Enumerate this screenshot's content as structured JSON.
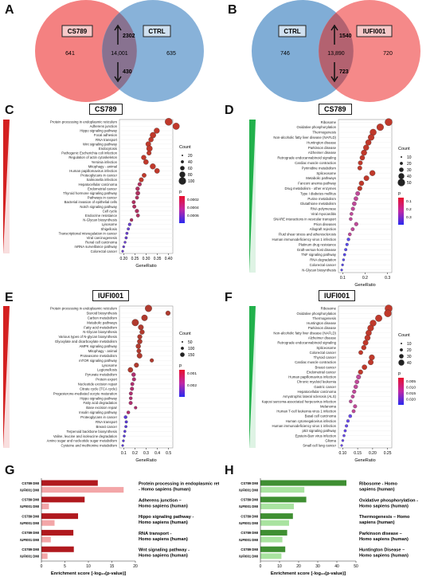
{
  "panels": {
    "A": {
      "letter": "A",
      "left_label": "CS789",
      "right_label": "CTRL",
      "left_only": "641",
      "overlap": "14,001",
      "right_only": "635",
      "up": "2302",
      "down": "430",
      "left_color": "#f26b6b",
      "right_color": "#6a9fcf"
    },
    "B": {
      "letter": "B",
      "left_label": "CTRL",
      "right_label": "IUFI001",
      "left_only": "746",
      "overlap": "13,890",
      "right_only": "720",
      "up": "1540",
      "down": "723",
      "left_color": "#6a9fcf",
      "right_color": "#f26b6b"
    },
    "C": {
      "letter": "C",
      "title": "CS789",
      "xlabel": "GeneRatio",
      "xticks": [
        "0.20",
        "0.25",
        "0.30",
        "0.35",
        "0.40"
      ],
      "terms": [
        "Protein processing in endoplasmic reticulum",
        "Adherens junction",
        "Hippo signaling pathway",
        "Focal adhesion",
        "RNA transport",
        "Wnt signaling pathway",
        "Endocytosis",
        "Pathogenic Escherichia coli infection",
        "Regulation of actin cytoskeleton",
        "Yersinia infection",
        "Mitophagy - animal",
        "Human papillomavirus infection",
        "Proteoglycans in cancer",
        "Salmonella infection",
        "Hepatocellular carcinoma",
        "Endometrial cancer",
        "Thyroid hormone signaling pathway",
        "Pathways in cancer",
        "Bacterial invasion of epithelial cells",
        "Notch signaling pathway",
        "Cell cycle",
        "Endocrine resistance",
        "N-Glycan biosynthesis",
        "Lysosome",
        "Shigellosis",
        "Transcriptional misregulation in cancer",
        "Viral carcinogenesis",
        "Renal cell carcinoma",
        "mRNA surveillance pathway",
        "Colorectal cancer"
      ],
      "size_legend": {
        "title": "Count",
        "values": [
          "20",
          "40",
          "60",
          "80",
          "100"
        ]
      },
      "color_legend": {
        "title": "p",
        "values": [
          "0.0002",
          "0.0004",
          "0.0006"
        ]
      }
    },
    "D": {
      "letter": "D",
      "title": "CS789",
      "xlabel": "GeneRatio",
      "xticks": [
        "0.1",
        "0.2",
        "0.3"
      ],
      "terms": [
        "Ribosome",
        "Oxidative phosphorylation",
        "Thermogenesis",
        "Non-alcoholic fatty liver disease (NAFLD)",
        "Huntington disease",
        "Parkinson disease",
        "Alzheimer disease",
        "Retrograde endocannabinoid signaling",
        "Cardiac muscle contraction",
        "Pyrimidine metabolism",
        "Spliceosome",
        "Metabolic pathways",
        "Fanconi anemia pathway",
        "Drug metabolism - other enzymes",
        "Type I diabetes mellitus",
        "Purine metabolism",
        "Glutathione metabolism",
        "RNA polymerase",
        "Viral myocarditis",
        "SNARE interactions in vesicular transport",
        "Prion diseases",
        "Allograft rejection",
        "Fluid shear stress and atherosclerosis",
        "Human immunodeficiency virus 1 infection",
        "Platinum drug resistance",
        "Graft-versus-host disease",
        "TNF signaling pathway",
        "RNA degradation",
        "Colorectal cancer",
        "N-Glycan biosynthesis"
      ],
      "size_legend": {
        "title": "Count",
        "values": [
          "10",
          "20",
          "30",
          "40",
          "50"
        ]
      },
      "color_legend": {
        "title": "p",
        "values": [
          "0.1",
          "0.2",
          "0.3"
        ]
      }
    },
    "E": {
      "letter": "E",
      "title": "IUFI001",
      "xlabel": "GeneRatio",
      "xticks": [
        "0.1",
        "0.2",
        "0.3",
        "0.4",
        "0.5"
      ],
      "terms": [
        "Protein processing in endoplasmic reticulum",
        "Steroid biosynthesis",
        "Carbon metabolism",
        "Metabolic pathways",
        "Fatty acid metabolism",
        "N-Glycan biosynthesis",
        "Various types of N-glycan biosynthesis",
        "Glyoxylate and dicarboxylate metabolism",
        "AMPK signaling pathway",
        "Mitophagy - animal",
        "Proteasome metabolism",
        "mTOR signaling pathway",
        "Lysosome",
        "Legionellosis",
        "Pyruvate metabolism",
        "Protein export",
        "Nucleotide excision repair",
        "Citrate cycle (TCA cycle)",
        "Progesterone-mediated oocyte maturation",
        "Hippo signaling pathway",
        "Fatty acid degradation",
        "Base excision repair",
        "Insulin signaling pathway",
        "Proteoglycans in cancer",
        "RNA transport",
        "Breast cancer",
        "Terpenoid backbone biosynthesis",
        "Valine, leucine and isoleucine degradation",
        "Amino sugar and nucleotide sugar metabolism",
        "Cysteine and methionine metabolism"
      ],
      "size_legend": {
        "title": "Count",
        "values": [
          "50",
          "100",
          "150"
        ]
      },
      "color_legend": {
        "title": "p",
        "values": [
          "0.001",
          "0.002"
        ]
      }
    },
    "F": {
      "letter": "F",
      "title": "IUFI001",
      "xlabel": "GeneRatio",
      "xticks": [
        "0.10",
        "0.15",
        "0.20",
        "0.25"
      ],
      "terms": [
        "Ribosome",
        "Oxidative phosphorylation",
        "Thermogenesis",
        "Huntington disease",
        "Parkinson disease",
        "Non-alcoholic fatty liver disease (NAFLD)",
        "Alzheimer disease",
        "Retrograde endocannabinoid signaling",
        "Spliceosome",
        "Colorectal cancer",
        "Thyroid cancer",
        "Cardiac muscle contraction",
        "Breast cancer",
        "Endometrial cancer",
        "Human papillomavirus infection",
        "Chronic myeloid leukemia",
        "Gastric cancer",
        "Hepatocellular carcinoma",
        "Amyotrophic lateral sclerosis (ALS)",
        "Kaposi sarcoma-associated herpesvirus infection",
        "Melanoma",
        "Human T-cell leukemia virus 1 infection",
        "Basal cell carcinoma",
        "Human cytomegalovirus infection",
        "Human immunodeficiency virus 1 infection",
        "p53 signaling pathway",
        "Epstein-Barr virus infection",
        "Glioma",
        "Small cell lung cancer"
      ],
      "size_legend": {
        "title": "Count",
        "values": [
          "10",
          "20",
          "30",
          "40"
        ]
      },
      "color_legend": {
        "title": "p",
        "values": [
          "0.005",
          "0.010",
          "0.015",
          "0.020"
        ]
      }
    },
    "G": {
      "letter": "G",
      "xlabel": "Enrichment score [-log₁₀(p-value)]",
      "xticks": [
        "0",
        "5",
        "10",
        "15",
        "20"
      ]
    },
    "H": {
      "letter": "H",
      "xlabel": "Enrichment score [-log₁₀(p-value)]",
      "xticks": [
        "0",
        "10",
        "20",
        "30",
        "40",
        "50"
      ]
    }
  },
  "chart_data": [
    {
      "panel": "G",
      "type": "bar",
      "orientation": "horizontal",
      "categories": [
        "Protein processing in endoplasmic reticulum - Homo sapiens (human)",
        "Adherens junction – Homo sapiens (human)",
        "Hippo signaling pathway - Homo sapiens (human)",
        "RNA transport - Homo sapiens (human)",
        "Wnt signaling pathway - Homo sapiens (human)"
      ],
      "xlim": [
        0,
        20
      ],
      "series": [
        {
          "name": "CS789 DMI",
          "color": "#b0191e",
          "values": [
            12.0,
            9.2,
            7.8,
            6.8,
            6.9
          ]
        },
        {
          "name": "IUFI001 DMI",
          "color": "#f3a6a8",
          "values": [
            17.5,
            1.6,
            2.8,
            2.0,
            1.3
          ]
        }
      ]
    },
    {
      "panel": "H",
      "type": "bar",
      "orientation": "horizontal",
      "categories": [
        "Ribosome - Homo sapiens (human)",
        "Oxidative phosphorylation - Homo sapiens (human)",
        "Thermogenesis – Homo sapiens (human)",
        "Parkinson disease – Homo sapiens (human)",
        "Huntington Disease – Homo sapiens (human)"
      ],
      "xlim": [
        0,
        50
      ],
      "series": [
        {
          "name": "CS789 DMI",
          "color": "#3f8f32",
          "values": [
            45.0,
            24.0,
            17.0,
            14.0,
            13.0
          ]
        },
        {
          "name": "IUFI001 DMI",
          "color": "#a9e3a0",
          "values": [
            23.0,
            17.5,
            15.0,
            11.5,
            11.0
          ]
        }
      ]
    }
  ]
}
